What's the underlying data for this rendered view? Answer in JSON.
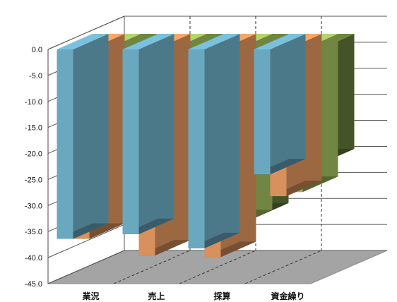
{
  "chart_data": {
    "type": "bar",
    "subtype": "3d-clustered-column",
    "title": "",
    "xlabel": "",
    "ylabel": "",
    "categories": [
      "業況",
      "売上",
      "採算",
      "資金繰り"
    ],
    "ylim": [
      -45,
      0
    ],
    "yticks": [
      0,
      -5,
      -10,
      -15,
      -20,
      -25,
      -30,
      -35,
      -40,
      -45
    ],
    "ytick_labels": [
      "0.0",
      "-5.0",
      "-10.0",
      "-15.0",
      "-20.0",
      "-25.0",
      "-30.0",
      "-35.0",
      "-40.0",
      "-45.0"
    ],
    "grid": true,
    "legend": "none",
    "series": [
      {
        "color": "#6aa8c0",
        "values": [
          -36.4,
          -35.5,
          -38.2,
          -24.0
        ]
      },
      {
        "color": "#d8905c",
        "values": [
          -36.4,
          -39.6,
          -39.9,
          -28.2
        ]
      },
      {
        "color": "#9bba5c",
        "values": [
          -27.9,
          -29.5,
          -33.8,
          -27.4
        ]
      },
      {
        "color": "#5f7537",
        "values": [
          -25.8,
          -27.1,
          -32.5,
          -22.1
        ]
      }
    ]
  }
}
